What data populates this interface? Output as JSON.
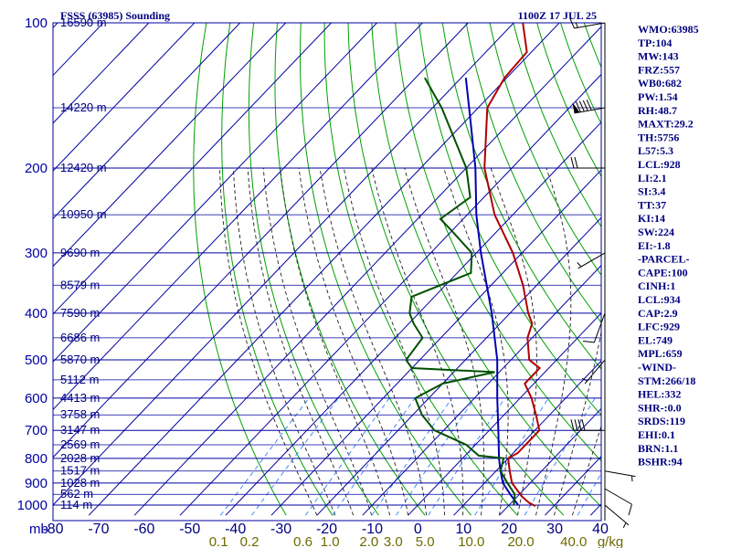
{
  "header": {
    "title": "FSSS (63985) Sounding",
    "time": "1100Z 17 JUL 25"
  },
  "indices": [
    "WMO:63985",
    "TP:104",
    "MW:143",
    "FRZ:557",
    "WB0:682",
    "PW:1.54",
    "RH:48.7",
    "MAXT:29.2",
    "TH:5756",
    "L57:5.3",
    "LCL:928",
    "LI:2.1",
    "SI:3.4",
    "TT:37",
    "KI:14",
    "SW:224",
    "EI:-1.8",
    "-PARCEL-",
    "CAPE:100",
    "CINH:1",
    "LCL:934",
    "CAP:2.9",
    "LFC:929",
    "EL:749",
    "MPL:659",
    "-WIND-",
    "STM:266/18",
    "HEL:332",
    "SHR-:0.0",
    "SRDS:119",
    "EHI:0.1",
    "BRN:1.1",
    "BSHR:94"
  ],
  "colors": {
    "isobar": "#0000a0",
    "dry_adiabat": "#00a000",
    "moist_adiabat": "#202020",
    "mixing_ratio": "#3080ff",
    "temperature": "#b00000",
    "dewpoint": "#005000",
    "parcel": "#0000b0",
    "text": "#000080"
  },
  "chart_data": {
    "type": "skew-t",
    "ylabel": "mb",
    "pressure_levels": [
      100,
      200,
      300,
      400,
      500,
      600,
      700,
      800,
      900,
      1000
    ],
    "pressure_labels": [
      "100",
      "200",
      "300",
      "400",
      "500",
      "600",
      "700",
      "800",
      "900",
      "1000"
    ],
    "temperature_ticks": [
      "-80",
      "-70",
      "-60",
      "-50",
      "-40",
      "-30",
      "-20",
      "-10",
      "0",
      "10",
      "20",
      "30",
      "40"
    ],
    "mixing_ratio_labels": [
      "0.1",
      "0.2",
      "0.6",
      "1.0",
      "2.0",
      "3.0",
      "5.0",
      "10.0",
      "20.0",
      "40.0",
      "g/kg"
    ],
    "mixing_ratio_values": [
      0.1,
      0.2,
      0.6,
      1.0,
      2.0,
      3.0,
      5.0,
      10.0,
      20.0,
      40.0
    ],
    "height_labels": [
      {
        "p": 100,
        "h": "16590 m"
      },
      {
        "p": 150,
        "h": "14220 m"
      },
      {
        "p": 200,
        "h": "12420 m"
      },
      {
        "p": 250,
        "h": "10950 m"
      },
      {
        "p": 300,
        "h": "9690 m"
      },
      {
        "p": 350,
        "h": "8579 m"
      },
      {
        "p": 400,
        "h": "7590 m"
      },
      {
        "p": 450,
        "h": "6686 m"
      },
      {
        "p": 500,
        "h": "5870 m"
      },
      {
        "p": 550,
        "h": "5112 m"
      },
      {
        "p": 600,
        "h": "4413 m"
      },
      {
        "p": 650,
        "h": "3758 m"
      },
      {
        "p": 700,
        "h": "3147 m"
      },
      {
        "p": 750,
        "h": "2569 m"
      },
      {
        "p": 800,
        "h": "2028 m"
      },
      {
        "p": 850,
        "h": "1517 m"
      },
      {
        "p": 900,
        "h": "1028 m"
      },
      {
        "p": 950,
        "h": "562 m"
      },
      {
        "p": 1000,
        "h": "114 m"
      }
    ],
    "temperature": [
      {
        "p": 1005,
        "t": 26
      },
      {
        "p": 990,
        "t": 24
      },
      {
        "p": 960,
        "t": 21
      },
      {
        "p": 900,
        "t": 16
      },
      {
        "p": 850,
        "t": 13
      },
      {
        "p": 800,
        "t": 10
      },
      {
        "p": 780,
        "t": 11
      },
      {
        "p": 700,
        "t": 11
      },
      {
        "p": 650,
        "t": 7
      },
      {
        "p": 600,
        "t": 2.5
      },
      {
        "p": 560,
        "t": -2
      },
      {
        "p": 520,
        "t": -2
      },
      {
        "p": 500,
        "t": -6
      },
      {
        "p": 450,
        "t": -11
      },
      {
        "p": 420,
        "t": -13
      },
      {
        "p": 400,
        "t": -16
      },
      {
        "p": 350,
        "t": -23
      },
      {
        "p": 300,
        "t": -32
      },
      {
        "p": 250,
        "t": -44
      },
      {
        "p": 200,
        "t": -56
      },
      {
        "p": 150,
        "t": -68
      },
      {
        "p": 130,
        "t": -70.5
      },
      {
        "p": 115,
        "t": -71
      },
      {
        "p": 100,
        "t": -78
      }
    ],
    "dewpoint": [
      {
        "p": 1000,
        "t": 21
      },
      {
        "p": 950,
        "t": 19
      },
      {
        "p": 900,
        "t": 15
      },
      {
        "p": 850,
        "t": 11
      },
      {
        "p": 800,
        "t": 9
      },
      {
        "p": 790,
        "t": 3
      },
      {
        "p": 750,
        "t": -2
      },
      {
        "p": 700,
        "t": -12
      },
      {
        "p": 650,
        "t": -18
      },
      {
        "p": 600,
        "t": -23
      },
      {
        "p": 560,
        "t": -20
      },
      {
        "p": 530,
        "t": -11
      },
      {
        "p": 520,
        "t": -30
      },
      {
        "p": 500,
        "t": -33
      },
      {
        "p": 450,
        "t": -34
      },
      {
        "p": 420,
        "t": -39
      },
      {
        "p": 400,
        "t": -42
      },
      {
        "p": 370,
        "t": -45
      },
      {
        "p": 330,
        "t": -37
      },
      {
        "p": 300,
        "t": -41
      },
      {
        "p": 270,
        "t": -50
      },
      {
        "p": 255,
        "t": -55
      },
      {
        "p": 230,
        "t": -53
      },
      {
        "p": 200,
        "t": -60
      },
      {
        "p": 150,
        "t": -78
      },
      {
        "p": 130,
        "t": -88
      }
    ],
    "parcel": [
      {
        "p": 1000,
        "t": 22
      },
      {
        "p": 950,
        "t": 18
      },
      {
        "p": 900,
        "t": 14
      },
      {
        "p": 850,
        "t": 11
      },
      {
        "p": 800,
        "t": 8
      },
      {
        "p": 700,
        "t": 2
      },
      {
        "p": 600,
        "t": -5
      },
      {
        "p": 500,
        "t": -13
      },
      {
        "p": 400,
        "t": -24
      },
      {
        "p": 300,
        "t": -39
      },
      {
        "p": 250,
        "t": -48
      },
      {
        "p": 200,
        "t": -58
      },
      {
        "p": 150,
        "t": -72
      },
      {
        "p": 130,
        "t": -79
      }
    ],
    "wind_barbs": [
      {
        "p": 100,
        "dir": 260,
        "spd": 15
      },
      {
        "p": 150,
        "dir": 260,
        "spd": 90
      },
      {
        "p": 200,
        "dir": 270,
        "spd": 20
      },
      {
        "p": 300,
        "dir": 240,
        "spd": 5
      },
      {
        "p": 400,
        "dir": 200,
        "spd": 10
      },
      {
        "p": 500,
        "dir": 220,
        "spd": 5
      },
      {
        "p": 700,
        "dir": 270,
        "spd": 40
      },
      {
        "p": 850,
        "dir": 100,
        "spd": 5
      },
      {
        "p": 925,
        "dir": 120,
        "spd": 10
      },
      {
        "p": 1000,
        "dir": 130,
        "spd": 5
      }
    ]
  }
}
